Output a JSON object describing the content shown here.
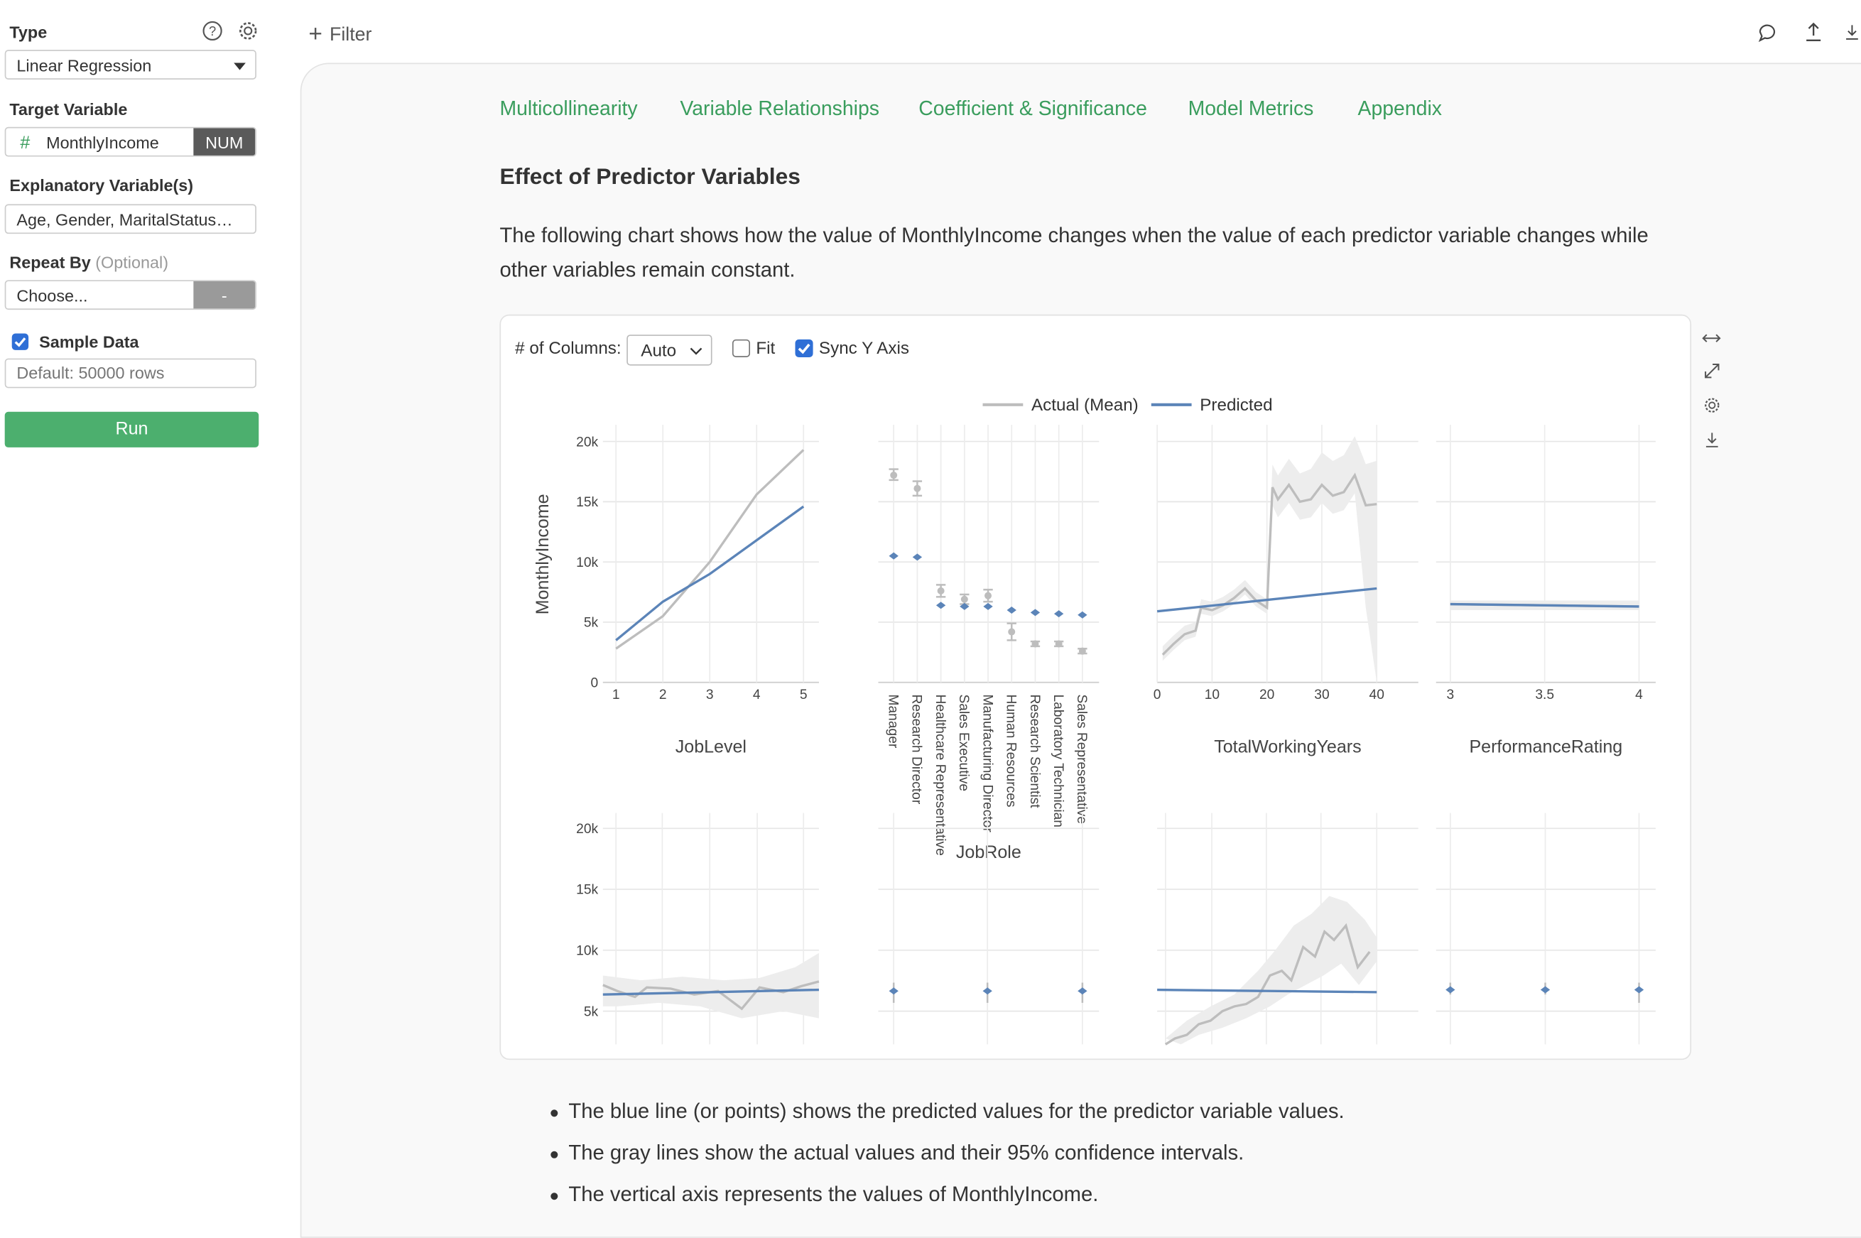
{
  "sidebar": {
    "type_label": "Type",
    "type_value": "Linear Regression",
    "target_label": "Target Variable",
    "target_hash": "#",
    "target_value": "MonthlyIncome",
    "target_badge": "NUM",
    "explanatory_label": "Explanatory Variable(s)",
    "explanatory_value": "Age, Gender, MaritalStatus…",
    "repeat_label": "Repeat By",
    "repeat_optional": "(Optional)",
    "repeat_value": "Choose...",
    "repeat_btn": "-",
    "sample_label": "Sample Data",
    "sample_placeholder": "Default: 50000 rows",
    "run_label": "Run"
  },
  "topbar": {
    "filter_label": "Filter"
  },
  "tabs": [
    "Multicollinearity",
    "Variable Relationships",
    "Coefficient & Significance",
    "Model Metrics",
    "Appendix"
  ],
  "section": {
    "title": "Effect of Predictor Variables",
    "description": "The following chart shows how the value of MonthlyIncome changes when the value of each predictor variable changes while other variables remain constant."
  },
  "chart_controls": {
    "columns_label": "# of Columns:",
    "columns_value": "Auto",
    "fit_label": "Fit",
    "fit_checked": false,
    "sync_label": "Sync Y Axis",
    "sync_checked": true
  },
  "bullets": [
    "The blue line (or points) shows the predicted values for the predictor variable values.",
    "The gray lines show the actual values and their 95% confidence intervals.",
    "The vertical axis represents the values of MonthlyIncome."
  ],
  "colors": {
    "accent": "#3a9d5d",
    "predicted": "#5b84b8",
    "actual": "#bdbdbd",
    "checkbox": "#2f6fd6"
  },
  "chart_data": {
    "type": "line",
    "ylabel": "MonthlyIncome",
    "ylim": [
      0,
      20000
    ],
    "yticks": [
      "0",
      "5k",
      "10k",
      "15k",
      "20k"
    ],
    "legend": [
      "Actual (Mean)",
      "Predicted"
    ],
    "legend_position": "top",
    "panels": [
      {
        "xlabel": "JobLevel",
        "xtype": "numeric",
        "xticks": [
          "1",
          "2",
          "3",
          "4",
          "5"
        ],
        "x": [
          1,
          2,
          3,
          4,
          5
        ],
        "actual": [
          2800,
          5500,
          10000,
          15600,
          19300
        ],
        "predicted": [
          3500,
          6700,
          9000,
          11800,
          14600
        ]
      },
      {
        "xlabel": "JobRole",
        "xtype": "categorical",
        "categories": [
          "Manager",
          "Research Director",
          "Healthcare Representative",
          "Sales Executive",
          "Manufacturing Director",
          "Human Resources",
          "Research Scientist",
          "Laboratory Technician",
          "Sales Representative"
        ],
        "actual": [
          17200,
          16100,
          7600,
          6900,
          7200,
          4200,
          3200,
          3200,
          2600
        ],
        "actual_ci_low": [
          16800,
          15500,
          7100,
          6500,
          6700,
          3500,
          3000,
          3000,
          2400
        ],
        "actual_ci_high": [
          17700,
          16700,
          8100,
          7300,
          7700,
          4900,
          3400,
          3400,
          2800
        ],
        "predicted": [
          10500,
          10400,
          6400,
          6300,
          6300,
          6000,
          5800,
          5700,
          5600
        ]
      },
      {
        "xlabel": "TotalWorkingYears",
        "xtype": "numeric",
        "xticks": [
          "0",
          "10",
          "20",
          "30",
          "40"
        ],
        "x": [
          1,
          3,
          5,
          7,
          8,
          10,
          12,
          14,
          16,
          18,
          20,
          21,
          22,
          24,
          26,
          28,
          30,
          32,
          34,
          36,
          38,
          40
        ],
        "actual": [
          2300,
          3200,
          4000,
          4300,
          6200,
          6000,
          6400,
          7000,
          7800,
          6800,
          6200,
          16200,
          15200,
          16400,
          15000,
          15200,
          16400,
          15500,
          15800,
          17200,
          14700,
          14800
        ],
        "predicted_x": [
          0,
          40
        ],
        "predicted": [
          5900,
          7800
        ]
      },
      {
        "xlabel": "PerformanceRating",
        "xtype": "numeric",
        "xticks": [
          "3",
          "3.5",
          "4"
        ],
        "x": [
          3,
          4
        ],
        "actual": [
          6500,
          6300
        ],
        "predicted": [
          6500,
          6300
        ]
      }
    ],
    "row2_ylim": [
      3000,
      20000
    ],
    "row2_yticks": [
      "5k",
      "10k",
      "15k",
      "20k"
    ]
  }
}
